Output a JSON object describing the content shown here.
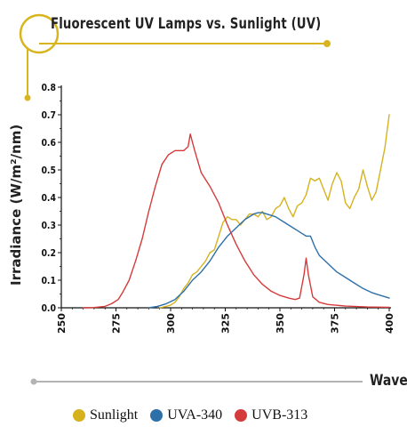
{
  "page": {
    "title": "Fluorescent UV Lamps vs. Sunlight (UV)"
  },
  "colors": {
    "accent": "#d8b51e",
    "axis": "#111111",
    "sunlight": "#d5b21e",
    "uva": "#2d6fa8",
    "uvb": "#d63b3b"
  },
  "chart_data": {
    "type": "line",
    "title": "Fluorescent UV Lamps vs. Sunlight (UV)",
    "xlabel": "Wavel",
    "ylabel": "Irradiance (W/m²/nm)",
    "xlim": [
      250,
      400
    ],
    "ylim": [
      0,
      0.8
    ],
    "xticks": [
      "250",
      "275",
      "300",
      "325",
      "350",
      "375",
      "400"
    ],
    "yticks": [
      "0.0",
      "0.1",
      "0.2",
      "0.3",
      "0.4",
      "0.5",
      "0.6",
      "0.7",
      "0.8"
    ],
    "grid": false,
    "legend": "bottom",
    "series": [
      {
        "name": "Sunlight",
        "color": "#d5b21e",
        "points": [
          [
            295,
            0
          ],
          [
            298,
            0.005
          ],
          [
            300,
            0.01
          ],
          [
            302,
            0.02
          ],
          [
            304,
            0.04
          ],
          [
            306,
            0.07
          ],
          [
            308,
            0.09
          ],
          [
            310,
            0.12
          ],
          [
            312,
            0.13
          ],
          [
            314,
            0.15
          ],
          [
            316,
            0.17
          ],
          [
            318,
            0.2
          ],
          [
            320,
            0.21
          ],
          [
            322,
            0.26
          ],
          [
            324,
            0.31
          ],
          [
            326,
            0.33
          ],
          [
            328,
            0.32
          ],
          [
            330,
            0.32
          ],
          [
            332,
            0.3
          ],
          [
            334,
            0.32
          ],
          [
            336,
            0.34
          ],
          [
            338,
            0.34
          ],
          [
            340,
            0.33
          ],
          [
            342,
            0.35
          ],
          [
            344,
            0.32
          ],
          [
            346,
            0.33
          ],
          [
            348,
            0.36
          ],
          [
            350,
            0.37
          ],
          [
            352,
            0.4
          ],
          [
            354,
            0.36
          ],
          [
            356,
            0.33
          ],
          [
            358,
            0.37
          ],
          [
            360,
            0.38
          ],
          [
            362,
            0.41
          ],
          [
            364,
            0.47
          ],
          [
            366,
            0.46
          ],
          [
            368,
            0.47
          ],
          [
            370,
            0.43
          ],
          [
            372,
            0.39
          ],
          [
            374,
            0.45
          ],
          [
            376,
            0.49
          ],
          [
            378,
            0.46
          ],
          [
            380,
            0.38
          ],
          [
            382,
            0.36
          ],
          [
            384,
            0.4
          ],
          [
            386,
            0.43
          ],
          [
            388,
            0.5
          ],
          [
            390,
            0.44
          ],
          [
            392,
            0.39
          ],
          [
            394,
            0.42
          ],
          [
            396,
            0.5
          ],
          [
            398,
            0.58
          ],
          [
            400,
            0.7
          ]
        ]
      },
      {
        "name": "UVA-340",
        "color": "#2d6fa8",
        "points": [
          [
            290,
            0
          ],
          [
            294,
            0.005
          ],
          [
            298,
            0.015
          ],
          [
            302,
            0.03
          ],
          [
            306,
            0.06
          ],
          [
            310,
            0.1
          ],
          [
            314,
            0.13
          ],
          [
            318,
            0.17
          ],
          [
            322,
            0.22
          ],
          [
            326,
            0.26
          ],
          [
            330,
            0.29
          ],
          [
            334,
            0.32
          ],
          [
            338,
            0.34
          ],
          [
            340,
            0.345
          ],
          [
            342,
            0.345
          ],
          [
            344,
            0.34
          ],
          [
            348,
            0.33
          ],
          [
            352,
            0.31
          ],
          [
            356,
            0.29
          ],
          [
            358,
            0.28
          ],
          [
            360,
            0.27
          ],
          [
            362,
            0.26
          ],
          [
            364,
            0.26
          ],
          [
            366,
            0.22
          ],
          [
            368,
            0.19
          ],
          [
            372,
            0.16
          ],
          [
            376,
            0.13
          ],
          [
            380,
            0.11
          ],
          [
            384,
            0.09
          ],
          [
            388,
            0.07
          ],
          [
            392,
            0.055
          ],
          [
            396,
            0.045
          ],
          [
            400,
            0.035
          ]
        ]
      },
      {
        "name": "UVB-313",
        "color": "#d63b3b",
        "points": [
          [
            260,
            0
          ],
          [
            265,
            0.001
          ],
          [
            270,
            0.005
          ],
          [
            273,
            0.015
          ],
          [
            276,
            0.03
          ],
          [
            278,
            0.055
          ],
          [
            281,
            0.1
          ],
          [
            284,
            0.17
          ],
          [
            287,
            0.25
          ],
          [
            290,
            0.35
          ],
          [
            293,
            0.44
          ],
          [
            296,
            0.52
          ],
          [
            299,
            0.555
          ],
          [
            302,
            0.57
          ],
          [
            306,
            0.57
          ],
          [
            308,
            0.585
          ],
          [
            309,
            0.63
          ],
          [
            311,
            0.57
          ],
          [
            314,
            0.49
          ],
          [
            318,
            0.44
          ],
          [
            322,
            0.38
          ],
          [
            326,
            0.3
          ],
          [
            330,
            0.23
          ],
          [
            334,
            0.17
          ],
          [
            338,
            0.12
          ],
          [
            342,
            0.085
          ],
          [
            346,
            0.06
          ],
          [
            350,
            0.045
          ],
          [
            354,
            0.035
          ],
          [
            357,
            0.03
          ],
          [
            359,
            0.035
          ],
          [
            361,
            0.12
          ],
          [
            362,
            0.18
          ],
          [
            363,
            0.12
          ],
          [
            365,
            0.04
          ],
          [
            368,
            0.02
          ],
          [
            372,
            0.012
          ],
          [
            380,
            0.006
          ],
          [
            390,
            0.003
          ],
          [
            400,
            0.002
          ]
        ]
      }
    ]
  }
}
